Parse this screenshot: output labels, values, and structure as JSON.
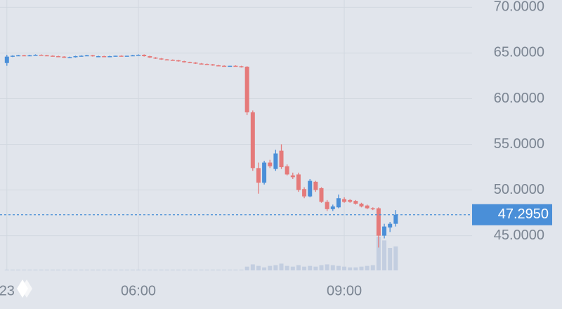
{
  "chart_data": {
    "type": "candlestick",
    "categories": [
      "23",
      null,
      null,
      null,
      null,
      null,
      null,
      null,
      null,
      null,
      null,
      null,
      null,
      null,
      null,
      null,
      null,
      null,
      null,
      null,
      null,
      null,
      null,
      "06:00",
      null,
      null,
      null,
      null,
      null,
      null,
      null,
      null,
      null,
      null,
      null,
      null,
      null,
      null,
      null,
      null,
      null,
      null,
      null,
      null,
      null,
      null,
      null,
      null,
      null,
      null,
      null,
      null,
      null,
      null,
      null,
      null,
      null,
      null,
      null,
      "09:00",
      null,
      null,
      null,
      null,
      null,
      null,
      null,
      null,
      null
    ],
    "open": [
      63.9,
      64.6,
      64.7,
      64.75,
      64.7,
      64.75,
      64.8,
      64.75,
      64.7,
      64.65,
      64.6,
      64.5,
      64.55,
      64.65,
      64.7,
      64.75,
      64.65,
      64.65,
      64.6,
      64.65,
      64.7,
      64.65,
      64.7,
      64.75,
      64.8,
      64.65,
      64.5,
      64.4,
      64.3,
      64.25,
      64.2,
      64.1,
      64.0,
      63.95,
      63.85,
      63.8,
      63.75,
      63.65,
      63.6,
      63.55,
      63.6,
      63.55,
      63.5,
      58.5,
      52.4,
      50.8,
      53.0,
      52.3,
      54.3,
      52.6,
      51.6,
      51.7,
      50.1,
      49.3,
      50.9,
      50.2,
      48.7,
      47.9,
      48.1,
      49.0,
      48.9,
      48.8,
      48.5,
      48.3,
      48.0,
      48.0,
      45.0,
      45.9,
      46.3
    ],
    "high": [
      64.8,
      64.75,
      64.8,
      64.8,
      64.8,
      64.85,
      64.85,
      64.8,
      64.75,
      64.7,
      64.65,
      64.6,
      64.7,
      64.75,
      64.8,
      64.8,
      64.7,
      64.7,
      64.7,
      64.7,
      64.75,
      64.7,
      64.8,
      64.85,
      64.85,
      64.7,
      64.55,
      64.45,
      64.35,
      64.3,
      64.25,
      64.15,
      64.05,
      64.0,
      63.9,
      63.85,
      63.8,
      63.7,
      63.65,
      63.6,
      63.65,
      63.6,
      63.55,
      58.7,
      53.0,
      53.2,
      53.3,
      54.4,
      55.0,
      52.8,
      51.9,
      51.9,
      50.3,
      51.2,
      51.0,
      50.3,
      48.9,
      48.4,
      49.5,
      49.2,
      49.0,
      48.9,
      48.6,
      48.4,
      48.1,
      48.1,
      46.3,
      46.5,
      47.8
    ],
    "low": [
      63.6,
      64.55,
      64.65,
      64.7,
      64.65,
      64.7,
      64.7,
      64.7,
      64.6,
      64.55,
      64.45,
      64.45,
      64.5,
      64.6,
      64.65,
      64.6,
      64.6,
      64.6,
      64.55,
      64.6,
      64.6,
      64.6,
      64.65,
      64.7,
      64.6,
      64.45,
      64.35,
      64.25,
      64.2,
      64.15,
      64.05,
      63.95,
      63.9,
      63.8,
      63.75,
      63.7,
      63.6,
      63.55,
      63.5,
      63.5,
      63.5,
      63.4,
      58.2,
      52.1,
      49.6,
      50.6,
      52.4,
      52.1,
      52.3,
      51.6,
      51.2,
      49.8,
      49.1,
      49.2,
      49.8,
      48.6,
      47.7,
      47.7,
      48.0,
      48.6,
      48.6,
      48.4,
      48.1,
      47.9,
      47.8,
      43.7,
      44.7,
      45.4,
      46.0
    ],
    "close": [
      64.6,
      64.7,
      64.75,
      64.7,
      64.75,
      64.8,
      64.75,
      64.7,
      64.65,
      64.6,
      64.5,
      64.55,
      64.65,
      64.7,
      64.75,
      64.65,
      64.65,
      64.6,
      64.65,
      64.7,
      64.65,
      64.7,
      64.75,
      64.8,
      64.65,
      64.5,
      64.4,
      64.3,
      64.25,
      64.2,
      64.1,
      64.0,
      63.95,
      63.85,
      63.8,
      63.75,
      63.65,
      63.6,
      63.55,
      63.6,
      63.55,
      63.5,
      58.5,
      52.4,
      50.8,
      53.0,
      52.6,
      54.0,
      52.5,
      51.7,
      51.4,
      50.0,
      49.3,
      51.0,
      50.0,
      48.7,
      47.9,
      48.2,
      49.1,
      48.7,
      48.7,
      48.5,
      48.2,
      48.0,
      47.9,
      45.0,
      46.0,
      46.3,
      47.295
    ],
    "volume": [
      1,
      1,
      1,
      1,
      1,
      1,
      1,
      1,
      1,
      1,
      1,
      1,
      1,
      1,
      1,
      1,
      1,
      1,
      1,
      1,
      1,
      1,
      1,
      1,
      1,
      1,
      1,
      1,
      1,
      1,
      1,
      1,
      1,
      1,
      1,
      1,
      1,
      1,
      1,
      1,
      1,
      1,
      5,
      8,
      6,
      4,
      6,
      7,
      9,
      6,
      5,
      7,
      5,
      6,
      5,
      7,
      8,
      7,
      6,
      5,
      4,
      4,
      5,
      6,
      7,
      45,
      40,
      30,
      32
    ],
    "up_color": "#4a8fd8",
    "down_color": "#e57a7a",
    "volume_color": "#c3cee0",
    "ylim": [
      41.2,
      70.8
    ],
    "yticks": [
      {
        "value": 45,
        "label": "45.0000"
      },
      {
        "value": 50,
        "label": "50.0000"
      },
      {
        "value": 55,
        "label": "55.0000"
      },
      {
        "value": 60,
        "label": "60.0000"
      },
      {
        "value": 65,
        "label": "65.0000"
      },
      {
        "value": 70,
        "label": "70.0000"
      }
    ],
    "price_line": {
      "value": 47.295,
      "label": "47.2950"
    },
    "grid": true
  }
}
